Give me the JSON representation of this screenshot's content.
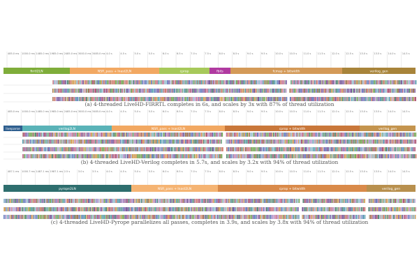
{
  "panels": [
    {
      "ticks": [
        "485.0 ms",
        "1000.0 ms",
        "1485.0 ms",
        "1985.0 ms",
        "2485.0 ms",
        "3000.0 ms",
        "3485.0 ms",
        "4.0 s",
        "4.5 s",
        "5.0 s",
        "5.5 s",
        "6.0 s",
        "6.5 s",
        "7.0 s",
        "7.5 s",
        "8.0 s",
        "8.5 s",
        "9.0 s",
        "9.5 s",
        "10.0 s",
        "10.5 s",
        "11.0 s",
        "11.5 s",
        "12.0 s",
        "12.5 s",
        "13.0 s",
        "13.5 s",
        "14.0 s",
        "14.5 s"
      ],
      "phases": [
        "firrtl2LN",
        "NSR_pass + lnast2LN",
        "cprop",
        "fbits",
        "fcmap + bitwidth",
        "verilog_gen"
      ],
      "caption": "(a) 4-threaded LiveHD-FIRRTL  completes in 6s, and scales by 3x with 87% of thread utilization"
    },
    {
      "ticks": [
        "485.0 ms",
        "1000.0 ms",
        "1485.0 ms",
        "1985.0 ms",
        "2485.0 ms",
        "3000.0 ms",
        "3485.0 ms",
        "4.0 s",
        "4.5 s",
        "5.0 s",
        "5.5 s",
        "6.0 s",
        "6.5 s",
        "7.0 s",
        "7.5 s",
        "8.0 s",
        "8.5 s",
        "9.0 s",
        "9.5 s",
        "10.0 s",
        "10.5 s",
        "11.0 s",
        "11.5 s",
        "12.0 s",
        "12.5 s",
        "13.0 s",
        "13.5 s",
        "14.0 s",
        "14.5 s"
      ],
      "phases": [
        "liveparse",
        "verilog2LN",
        "NSR_pass + lnast2LN",
        "cprop + bitwidth",
        "verilog_gen"
      ],
      "caption": "(b) 4-threaded LiveHD-Verilog  completes in 5.7s, and scales by 3.2x with 94% of thread utilization"
    },
    {
      "ticks": [
        "487.1 ms",
        "1000.7 ms",
        "1487.1 ms",
        "1987.1 ms",
        "2.5 s",
        "3.0 s",
        "3.5 s",
        "4.0 s",
        "4.5 s",
        "5.0 s",
        "5.5 s",
        "6.0 s",
        "6.5 s",
        "7.0 s",
        "7.5 s",
        "8.0 s",
        "8.5 s",
        "9.0 s",
        "9.5 s",
        "10.0 s",
        "10.5 s",
        "11.0 s",
        "11.5 s",
        "12.0 s",
        "12.5 s",
        "13.0 s",
        "13.5 s",
        "14.0 s",
        "14.5 s"
      ],
      "phases": [
        "pyrope2LN",
        "NSR_pass + lnast2LN",
        "cprop + bitwidth",
        "verilog_gen"
      ],
      "caption": "(c) 4-threaded LiveHD-Pyrope parallelizes all passes, completes in 3.9s, and scales by 3.8x with 94% of thread utilization"
    }
  ]
}
